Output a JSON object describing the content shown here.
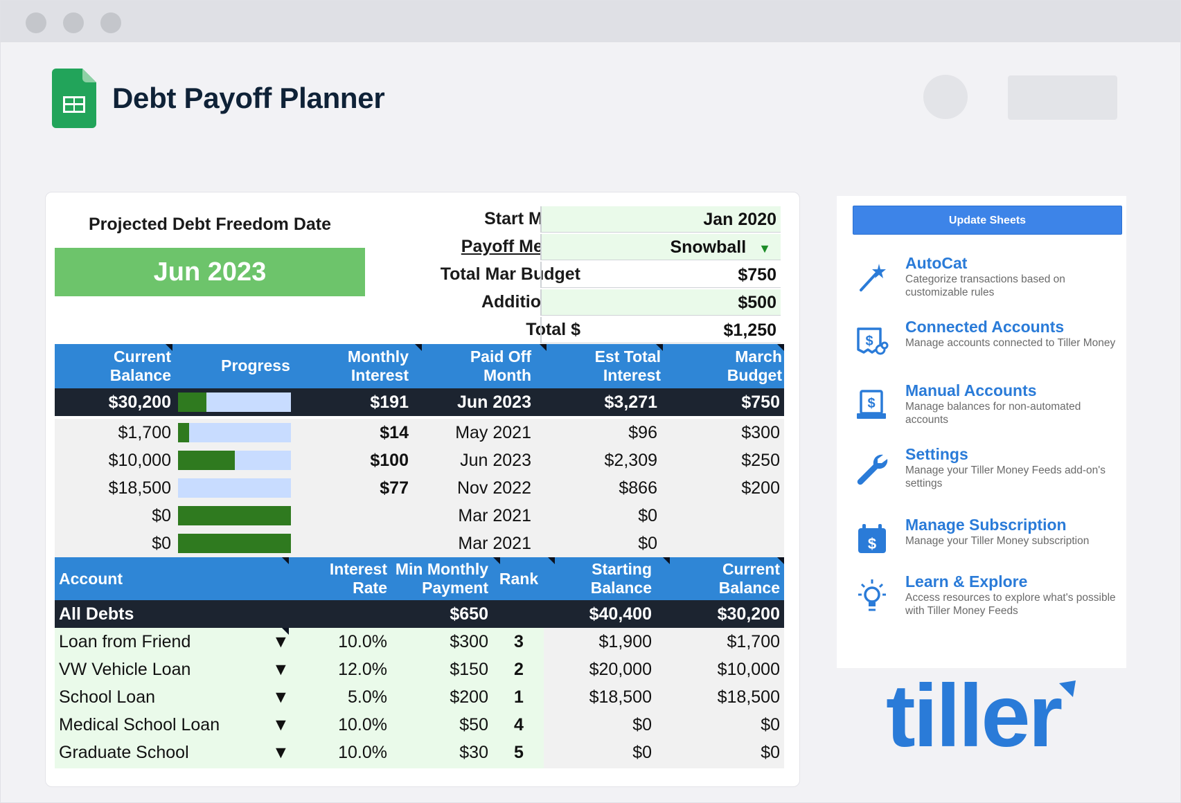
{
  "window": {
    "controls": [
      "close-dot",
      "minimize-dot",
      "maximize-dot"
    ]
  },
  "header": {
    "title": "Debt Payoff Planner"
  },
  "summary": {
    "freedom_label": "Projected Debt Freedom Date",
    "freedom_value": "Jun 2023",
    "start_month_label": "Start Month",
    "start_month_value": "Jan 2020",
    "payoff_method_label": "Payoff Method",
    "payoff_method_value": "Snowball",
    "total_budget_label": "Total Mar Budget",
    "total_budget_value": "$750",
    "additional_label": "Additional $",
    "additional_value": "$500",
    "total_label": "Total $",
    "total_value": "$1,250"
  },
  "progress_table": {
    "headers": {
      "current_balance": [
        "Current",
        "Balance"
      ],
      "progress": "Progress",
      "monthly_interest": [
        "Monthly",
        "Interest"
      ],
      "paid_off_month": [
        "Paid Off",
        "Month"
      ],
      "est_total_interest": [
        "Est Total",
        "Interest"
      ],
      "march_budget": [
        "March",
        "Budget"
      ]
    },
    "total_row": {
      "balance": "$30,200",
      "progress": 0.25,
      "interest": "$191",
      "paid_off": "Jun 2023",
      "est_interest": "$3,271",
      "budget": "$750"
    },
    "rows": [
      {
        "balance": "$1,700",
        "progress": 0.1,
        "interest": "$14",
        "paid_off": "May 2021",
        "est_interest": "$96",
        "budget": "$300"
      },
      {
        "balance": "$10,000",
        "progress": 0.5,
        "interest": "$100",
        "paid_off": "Jun 2023",
        "est_interest": "$2,309",
        "budget": "$250"
      },
      {
        "balance": "$18,500",
        "progress": 0.0,
        "interest": "$77",
        "paid_off": "Nov 2022",
        "est_interest": "$866",
        "budget": "$200"
      },
      {
        "balance": "$0",
        "progress": 1.0,
        "interest": "",
        "paid_off": "Mar 2021",
        "est_interest": "$0",
        "budget": ""
      },
      {
        "balance": "$0",
        "progress": 1.0,
        "interest": "",
        "paid_off": "Mar 2021",
        "est_interest": "$0",
        "budget": ""
      }
    ]
  },
  "debt_table": {
    "headers": {
      "account": "Account",
      "interest_rate": [
        "Interest",
        "Rate"
      ],
      "min_payment": [
        "Min Monthly",
        "Payment"
      ],
      "rank": "Rank",
      "starting_balance": [
        "Starting",
        "Balance"
      ],
      "current_balance": [
        "Current",
        "Balance"
      ]
    },
    "total_row": {
      "account": "All Debts",
      "min_payment": "$650",
      "starting_balance": "$40,400",
      "current_balance": "$30,200"
    },
    "rows": [
      {
        "account": "Loan from Friend",
        "rate": "10.0%",
        "min_payment": "$300",
        "rank": "3",
        "starting": "$1,900",
        "current": "$1,700"
      },
      {
        "account": "VW Vehicle Loan",
        "rate": "12.0%",
        "min_payment": "$150",
        "rank": "2",
        "starting": "$20,000",
        "current": "$10,000"
      },
      {
        "account": "School Loan",
        "rate": "5.0%",
        "min_payment": "$200",
        "rank": "1",
        "starting": "$18,500",
        "current": "$18,500"
      },
      {
        "account": "Medical School Loan",
        "rate": "10.0%",
        "min_payment": "$50",
        "rank": "4",
        "starting": "$0",
        "current": "$0"
      },
      {
        "account": "Graduate School",
        "rate": "10.0%",
        "min_payment": "$30",
        "rank": "5",
        "starting": "$0",
        "current": "$0"
      }
    ]
  },
  "sidebar": {
    "update_button": "Update Sheets",
    "items": [
      {
        "title": "AutoCat",
        "desc": "Categorize transactions based on customizable rules",
        "icon": "magic-wand-icon"
      },
      {
        "title": "Connected Accounts",
        "desc": "Manage accounts connected to Tiller Money",
        "icon": "connected-accounts-icon"
      },
      {
        "title": "Manual Accounts",
        "desc": "Manage balances for non-automated accounts",
        "icon": "manual-accounts-icon"
      },
      {
        "title": "Settings",
        "desc": "Manage your Tiller Money Feeds add-on's settings",
        "icon": "wrench-icon"
      },
      {
        "title": "Manage Subscription",
        "desc": "Manage your Tiller Money subscription",
        "icon": "subscription-icon"
      },
      {
        "title": "Learn & Explore",
        "desc": "Access resources to explore what's possible with Tiller Money Feeds",
        "icon": "lightbulb-icon"
      }
    ]
  },
  "brand": {
    "logo_text": "tiller",
    "accent": "#2a7bd8",
    "green": "#6dc46b",
    "header_blue": "#2f86d6",
    "dark_row": "#1c2430"
  }
}
